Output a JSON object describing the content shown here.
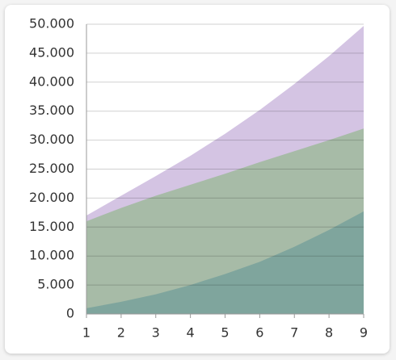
{
  "chart_data": {
    "type": "area",
    "x": [
      1,
      2,
      3,
      4,
      5,
      6,
      7,
      8,
      9
    ],
    "series": [
      {
        "color": "#d4c4e3",
        "values": [
          17000,
          20400,
          23800,
          27300,
          31100,
          35200,
          39700,
          44500,
          49700
        ]
      },
      {
        "color": "#a7bba7",
        "values": [
          16000,
          18300,
          20400,
          22300,
          24200,
          26200,
          28100,
          30000,
          32000
        ]
      },
      {
        "color": "#7fa59d",
        "values": [
          1000,
          2100,
          3400,
          5000,
          6900,
          9000,
          11600,
          14500,
          17700
        ]
      }
    ],
    "xlim": [
      1,
      9
    ],
    "xticks": [
      1,
      2,
      3,
      4,
      5,
      6,
      7,
      8,
      9
    ],
    "ylim": [
      0,
      50000
    ],
    "yticks": [
      0,
      {
        "value": 5000,
        "label": "5.000"
      },
      {
        "value": 10000,
        "label": "10.000"
      },
      {
        "value": 15000,
        "label": "15.000"
      },
      {
        "value": 20000,
        "label": "20.000"
      },
      {
        "value": 25000,
        "label": "25.000"
      },
      {
        "value": 30000,
        "label": "30.000"
      },
      {
        "value": 35000,
        "label": "35.000"
      },
      {
        "value": 40000,
        "label": "40.000"
      },
      {
        "value": 45000,
        "label": "45.000"
      },
      {
        "value": 50000,
        "label": "50.000"
      }
    ],
    "grid": true
  }
}
